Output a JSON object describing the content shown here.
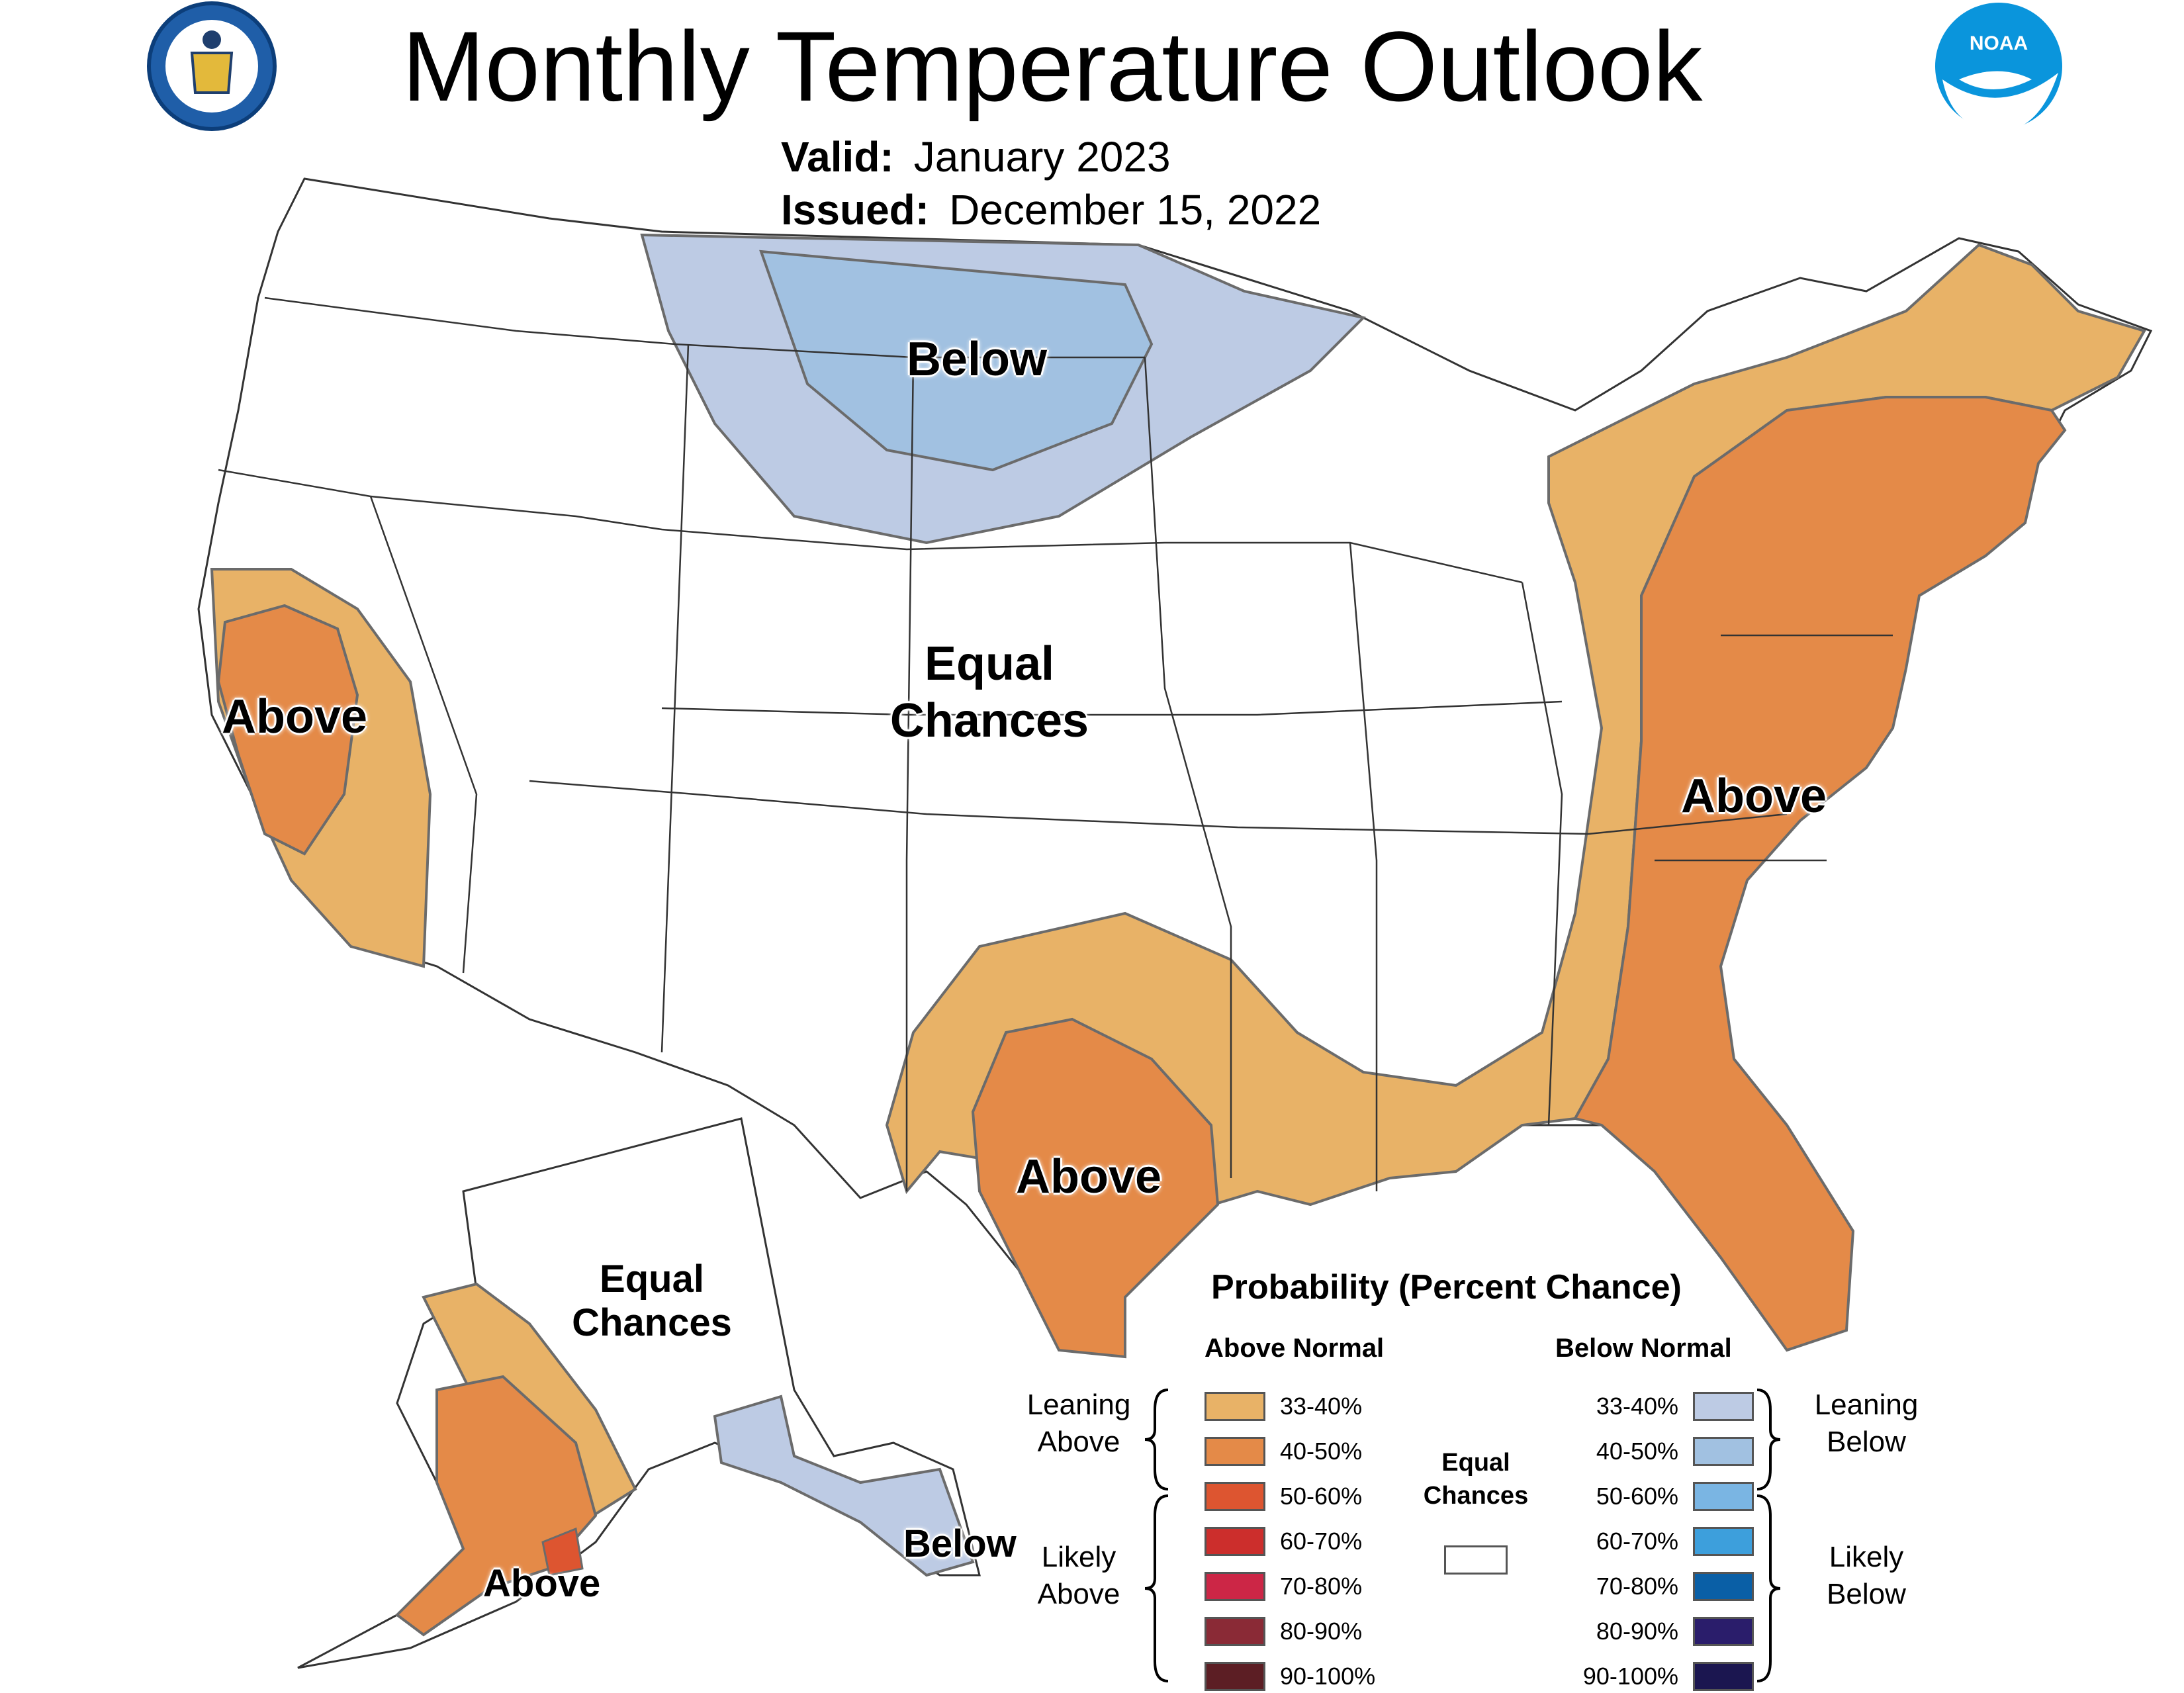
{
  "title": "Monthly Temperature Outlook",
  "valid": {
    "label": "Valid:",
    "value": "January 2023"
  },
  "issued": {
    "label": "Issued:",
    "value": "December 15, 2022"
  },
  "logos": {
    "left": "department-of-commerce-seal",
    "right": "noaa-logo",
    "noaa_text": "NOAA"
  },
  "map_labels": {
    "north_below": "Below",
    "central_equal": [
      "Equal",
      "Chances"
    ],
    "west_above": "Above",
    "east_above": "Above",
    "texas_above": "Above",
    "alaska_equal": [
      "Equal",
      "Chances"
    ],
    "alaska_above": "Above",
    "alaska_below": "Below"
  },
  "legend": {
    "title": "Probability (Percent Chance)",
    "above_header": "Above Normal",
    "below_header": "Below Normal",
    "above": [
      {
        "pct": "33-40%",
        "color": "#e8b267"
      },
      {
        "pct": "40-50%",
        "color": "#e48a48"
      },
      {
        "pct": "50-60%",
        "color": "#dd5530"
      },
      {
        "pct": "60-70%",
        "color": "#cc2e2c"
      },
      {
        "pct": "70-80%",
        "color": "#cc2646"
      },
      {
        "pct": "80-90%",
        "color": "#8a2a36"
      },
      {
        "pct": "90-100%",
        "color": "#5c1e24"
      }
    ],
    "below": [
      {
        "pct": "33-40%",
        "color": "#bdcbe4"
      },
      {
        "pct": "40-50%",
        "color": "#a1c1e1"
      },
      {
        "pct": "50-60%",
        "color": "#7ab5e3"
      },
      {
        "pct": "60-70%",
        "color": "#3d9fdc"
      },
      {
        "pct": "70-80%",
        "color": "#0a5fa6"
      },
      {
        "pct": "80-90%",
        "color": "#2a1d6b"
      },
      {
        "pct": "90-100%",
        "color": "#1b1650"
      }
    ],
    "leaning_above": [
      "Leaning",
      "Above"
    ],
    "likely_above": [
      "Likely",
      "Above"
    ],
    "leaning_below": [
      "Leaning",
      "Below"
    ],
    "likely_below": [
      "Likely",
      "Below"
    ],
    "equal_chances": [
      "Equal",
      "Chances"
    ]
  },
  "colors": {
    "above_33_40": "#e8b267",
    "above_40_50": "#e48a48",
    "above_50_60": "#dd5530",
    "below_33_40": "#bdcbe4",
    "below_40_50": "#a1c1e1",
    "border": "#333333",
    "contour": "#6b6b6b"
  }
}
